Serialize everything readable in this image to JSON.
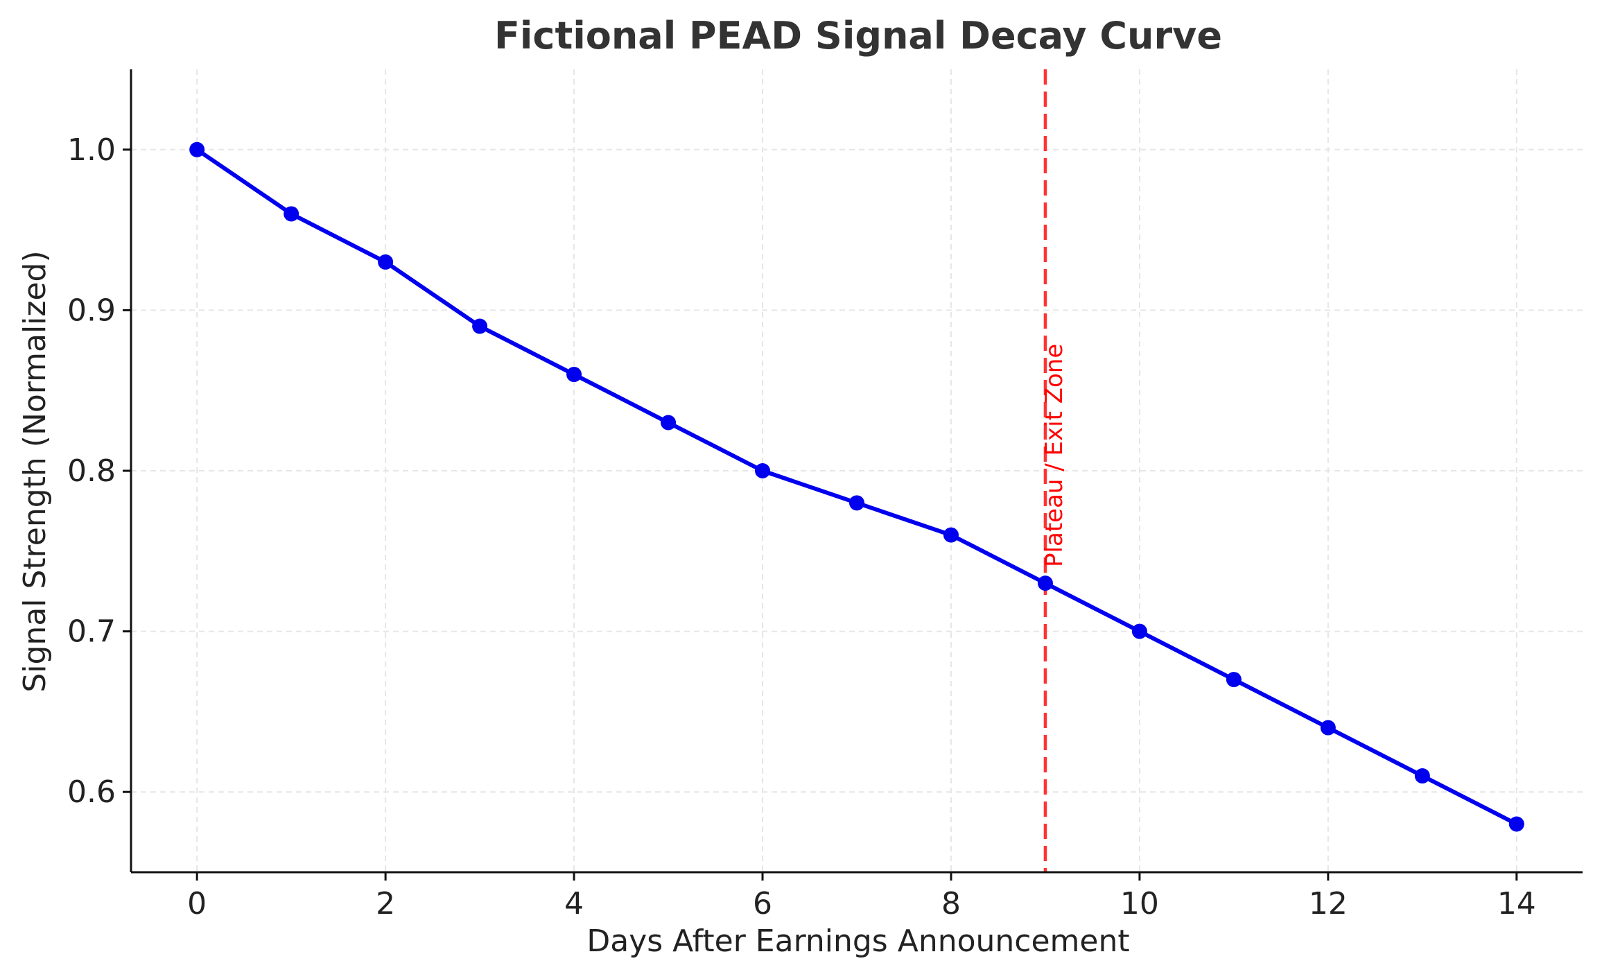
{
  "chart_data": {
    "type": "line",
    "title": "Fictional PEAD Signal Decay Curve",
    "xlabel": "Days After Earnings Announcement",
    "ylabel": "Signal Strength (Normalized)",
    "xlim": [
      -0.7,
      14.7
    ],
    "ylim": [
      0.55,
      1.05
    ],
    "xticks": [
      0,
      2,
      4,
      6,
      8,
      10,
      12,
      14
    ],
    "xtick_labels": [
      "0",
      "2",
      "4",
      "6",
      "8",
      "10",
      "12",
      "14"
    ],
    "yticks": [
      0.6,
      0.7,
      0.8,
      0.9,
      1.0
    ],
    "ytick_labels": [
      "0.6",
      "0.7",
      "0.8",
      "0.9",
      "1.0"
    ],
    "grid": true,
    "series": [
      {
        "color": "#0000ee",
        "x": [
          0,
          1,
          2,
          3,
          4,
          5,
          6,
          7,
          8,
          9,
          10,
          11,
          12,
          13,
          14
        ],
        "y": [
          1.0,
          0.96,
          0.93,
          0.89,
          0.86,
          0.83,
          0.8,
          0.78,
          0.76,
          0.73,
          0.7,
          0.67,
          0.64,
          0.61,
          0.58
        ]
      }
    ],
    "vline": {
      "x": 9,
      "color": "#ff3333",
      "style": "dashed",
      "label": "Plateau / Exit Zone"
    }
  }
}
